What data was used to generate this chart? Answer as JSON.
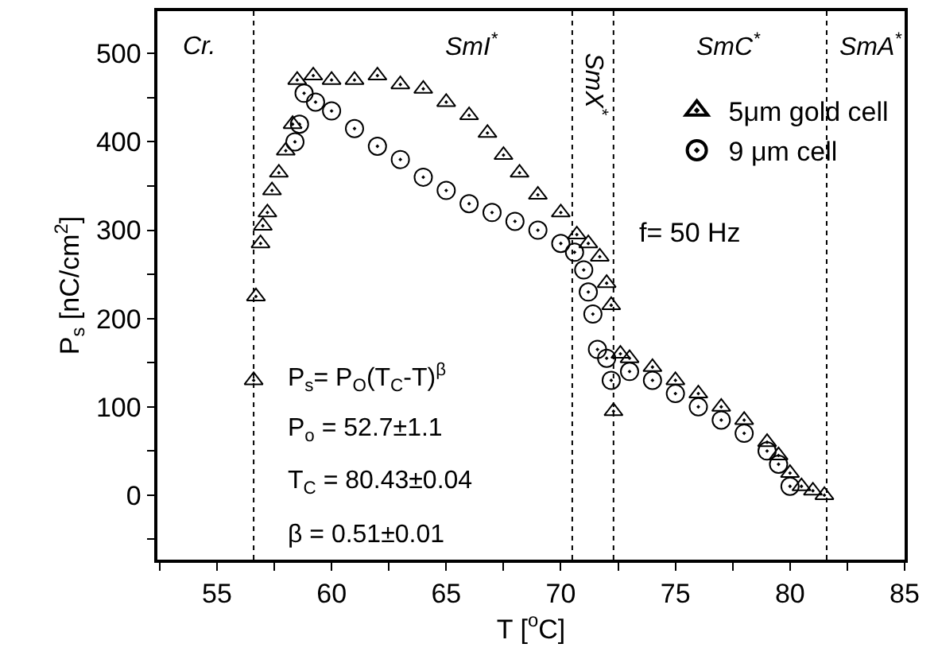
{
  "chart_data": {
    "type": "scatter",
    "xlabel": "T [$^{o}$C]",
    "ylabel": "P$_{s}$ [nC/cm$^{2}$]",
    "xlim": [
      52.4,
      85
    ],
    "ylim": [
      -73,
      548
    ],
    "xticks": [
      {
        "value": 52.5,
        "label": null
      },
      55,
      {
        "value": 57.5,
        "label": null
      },
      60,
      {
        "value": 62.5,
        "label": null
      },
      65,
      {
        "value": 67.5,
        "label": null
      },
      70,
      {
        "value": 72.5,
        "label": null
      },
      75,
      {
        "value": 77.5,
        "label": null
      },
      80,
      {
        "value": 82.5,
        "label": null
      },
      85
    ],
    "yticks": [
      {
        "value": -50,
        "label": null
      },
      0,
      {
        "value": 50,
        "label": null
      },
      100,
      {
        "value": 150,
        "label": null
      },
      200,
      {
        "value": 250,
        "label": null
      },
      300,
      {
        "value": 350,
        "label": null
      },
      400,
      {
        "value": 450,
        "label": null
      },
      500
    ],
    "legend": "top right",
    "series": [
      {
        "name": "5μm gold cell",
        "color": "#000000",
        "marker": "triangle",
        "x": [
          56.6,
          56.7,
          56.9,
          57.0,
          57.2,
          57.4,
          57.7,
          58.0,
          58.3,
          58.5,
          59.2,
          60,
          61,
          62,
          63,
          64,
          65,
          66,
          66.8,
          67.5,
          68.2,
          69,
          70,
          70.7,
          71.2,
          71.7,
          72.0,
          72.2,
          72.3,
          72.6,
          73,
          74,
          75,
          76,
          77,
          78,
          79,
          79.5,
          80,
          80.5,
          81,
          81.5
        ],
        "values": [
          130,
          225,
          285,
          305,
          320,
          345,
          365,
          390,
          420,
          470,
          475,
          470,
          470,
          475,
          465,
          460,
          445,
          430,
          410,
          385,
          365,
          340,
          320,
          295,
          285,
          270,
          240,
          215,
          95,
          160,
          155,
          145,
          130,
          115,
          100,
          85,
          60,
          45,
          25,
          10,
          5,
          0
        ]
      },
      {
        "name": "9 μm cell",
        "color": "#000000",
        "marker": "circle",
        "x": [
          58.4,
          58.6,
          58.8,
          59.3,
          60,
          61,
          62,
          63,
          64,
          65,
          66,
          67,
          68,
          69,
          70,
          70.6,
          71.0,
          71.2,
          71.4,
          71.6,
          72.0,
          72.2,
          73,
          74,
          75,
          76,
          77,
          78,
          79,
          79.5,
          80
        ],
        "values": [
          400,
          420,
          455,
          445,
          435,
          415,
          395,
          380,
          360,
          345,
          330,
          320,
          310,
          300,
          285,
          275,
          255,
          230,
          205,
          165,
          155,
          130,
          140,
          130,
          115,
          100,
          85,
          70,
          50,
          35,
          10
        ]
      }
    ],
    "ref_lines": [
      {
        "axis": "x",
        "value": 56.6,
        "line_style": "dotted",
        "color": "#000000"
      },
      {
        "axis": "x",
        "value": 70.5,
        "line_style": "dotted",
        "color": "#000000"
      },
      {
        "axis": "x",
        "value": 72.3,
        "line_style": "dotted",
        "color": "#000000"
      },
      {
        "axis": "x",
        "value": 81.6,
        "line_style": "dotted",
        "color": "#000000"
      }
    ],
    "annotations": [
      "Cr.",
      "SmI$^{*}$",
      "SmX$^{*}$",
      "SmC$^{*}$",
      "SmA$^{*}$",
      "f= 50 Hz",
      "P$_{s}$= P$_{O}$(T$_{C}$-T)$^{β}$",
      "P$_{o}$ = 52.7±1.1",
      "T$_{C}$ = 80.43±0.04",
      "β = 0.51±0.01"
    ]
  }
}
